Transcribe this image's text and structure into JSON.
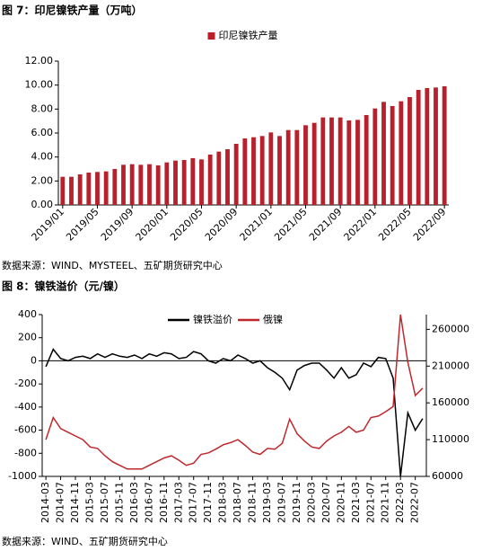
{
  "chart_data": [
    {
      "type": "bar",
      "title": "图 7：印尼镍铁产量（万吨）",
      "source": "数据来源：WIND、MYSTEEL、五矿期货研究中心",
      "categories": [
        "2019/01",
        null,
        null,
        null,
        "2019/05",
        null,
        null,
        null,
        "2019/09",
        null,
        null,
        null,
        "2020/01",
        null,
        null,
        null,
        "2020/05",
        null,
        null,
        null,
        "2020/09",
        null,
        null,
        null,
        "2021/01",
        null,
        null,
        null,
        "2021/05",
        null,
        null,
        null,
        "2021/09",
        null,
        null,
        null,
        "2022/01",
        null,
        null,
        null,
        "2022/05",
        null,
        null,
        null,
        "2022/09"
      ],
      "series": [
        {
          "name": "印尼镍铁产量",
          "color": "#b8212b",
          "values": [
            2.35,
            2.35,
            2.55,
            2.7,
            2.75,
            2.8,
            3.0,
            3.35,
            3.4,
            3.35,
            3.4,
            3.3,
            3.55,
            3.7,
            3.75,
            3.9,
            3.8,
            4.2,
            4.45,
            4.65,
            5.1,
            5.55,
            5.65,
            5.75,
            6.05,
            5.75,
            6.25,
            6.25,
            6.65,
            6.85,
            7.3,
            7.3,
            7.3,
            7.05,
            7.1,
            7.5,
            8.05,
            8.6,
            8.25,
            8.65,
            9.0,
            9.6,
            9.75,
            9.8,
            9.9
          ]
        }
      ],
      "ylim": [
        0,
        12
      ],
      "yticks": [
        {
          "value": 0,
          "label": "0.00"
        },
        {
          "value": 2,
          "label": "2.00"
        },
        {
          "value": 4,
          "label": "4.00"
        },
        {
          "value": 6,
          "label": "6.00"
        },
        {
          "value": 8,
          "label": "8.00"
        },
        {
          "value": 10,
          "label": "10.00"
        },
        {
          "value": 12,
          "label": "12.00"
        }
      ],
      "grid": false,
      "legend": "top"
    },
    {
      "type": "line",
      "title": "图 8：镍铁溢价（元/镍）",
      "source": "数据来源：WIND、五矿期货研究中心",
      "categories": [
        "2014-03",
        null,
        "2014-07",
        null,
        "2014-11",
        null,
        "2015-03",
        null,
        "2015-07",
        null,
        "2015-11",
        null,
        "2016-03",
        null,
        "2016-07",
        null,
        "2016-11",
        null,
        "2017-03",
        null,
        "2017-07",
        null,
        "2017-11",
        null,
        "2018-03",
        null,
        "2018-07",
        null,
        "2018-11",
        null,
        "2019-03",
        null,
        "2019-07",
        null,
        "2019-11",
        null,
        "2020-03",
        null,
        "2020-07",
        null,
        "2020-11",
        null,
        "2021-03",
        null,
        "2021-07",
        null,
        "2021-11",
        null,
        "2022-03",
        null,
        "2022-07",
        null
      ],
      "series": [
        {
          "name": "镍铁溢价",
          "color": "#000000",
          "values": [
            -50,
            100,
            20,
            0,
            30,
            40,
            20,
            60,
            30,
            60,
            40,
            30,
            50,
            20,
            60,
            40,
            70,
            60,
            20,
            30,
            80,
            60,
            0,
            -20,
            20,
            0,
            50,
            20,
            -20,
            0,
            -60,
            -100,
            -150,
            -250,
            -80,
            -40,
            -20,
            -20,
            -80,
            -150,
            -60,
            -150,
            -120,
            -20,
            -50,
            30,
            20,
            -150,
            -1000,
            -450,
            -600,
            -500
          ]
        },
        {
          "name": "俄镍",
          "color": "#c0272d",
          "axis": "y2",
          "values": [
            110000,
            140000,
            125000,
            120000,
            115000,
            110000,
            100000,
            98000,
            88000,
            80000,
            75000,
            70000,
            70000,
            70000,
            75000,
            80000,
            85000,
            88000,
            82000,
            75000,
            78000,
            90000,
            92000,
            97000,
            103000,
            106000,
            110000,
            102000,
            93000,
            90000,
            98000,
            97000,
            105000,
            138000,
            118000,
            108000,
            100000,
            98000,
            108000,
            115000,
            120000,
            128000,
            120000,
            123000,
            140000,
            142000,
            148000,
            155000,
            280000,
            215000,
            170000,
            180000
          ]
        }
      ],
      "ylim": [
        -1000,
        400
      ],
      "yticks": [
        -1000,
        -800,
        -600,
        -400,
        -200,
        0,
        200,
        400
      ],
      "y2lim": [
        60000,
        280000
      ],
      "y2ticks": [
        60000,
        110000,
        160000,
        210000,
        260000
      ],
      "grid": false,
      "legend": "top"
    }
  ]
}
